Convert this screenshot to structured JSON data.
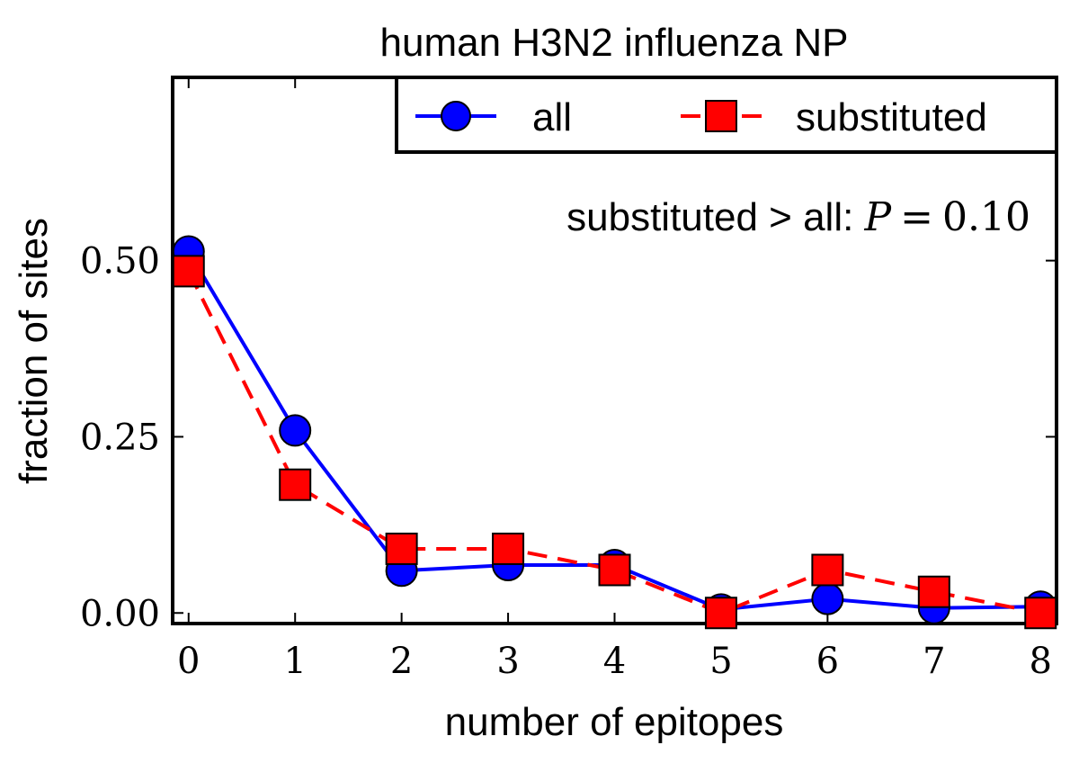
{
  "chart_data": {
    "type": "line",
    "title": "human H3N2 influenza NP",
    "xlabel": "number of epitopes",
    "ylabel": "fraction of sites",
    "x": [
      0,
      1,
      2,
      3,
      4,
      5,
      6,
      7,
      8
    ],
    "xlim": [
      -0.15,
      8.15
    ],
    "ylim": [
      -0.015,
      0.76
    ],
    "xticks": [
      "0",
      "1",
      "2",
      "3",
      "4",
      "5",
      "6",
      "7",
      "8"
    ],
    "yticks": [
      "0.00",
      "0.25",
      "0.50"
    ],
    "grid": false,
    "legend_position": "top-right",
    "annotation": {
      "text": "substituted > all: ",
      "stat_symbol": "P",
      "stat_eq": "=",
      "stat_value": "0.10"
    },
    "series": [
      {
        "name": "all",
        "values": [
          0.513,
          0.259,
          0.06,
          0.068,
          0.068,
          0.005,
          0.02,
          0.007,
          0.009
        ],
        "color": "#0000ff",
        "marker": "circle",
        "line_style": "solid"
      },
      {
        "name": "substituted",
        "values": [
          0.485,
          0.182,
          0.091,
          0.091,
          0.061,
          0.0,
          0.061,
          0.03,
          0.0
        ],
        "color": "#ff0000",
        "marker": "square",
        "line_style": "dashed"
      }
    ]
  }
}
